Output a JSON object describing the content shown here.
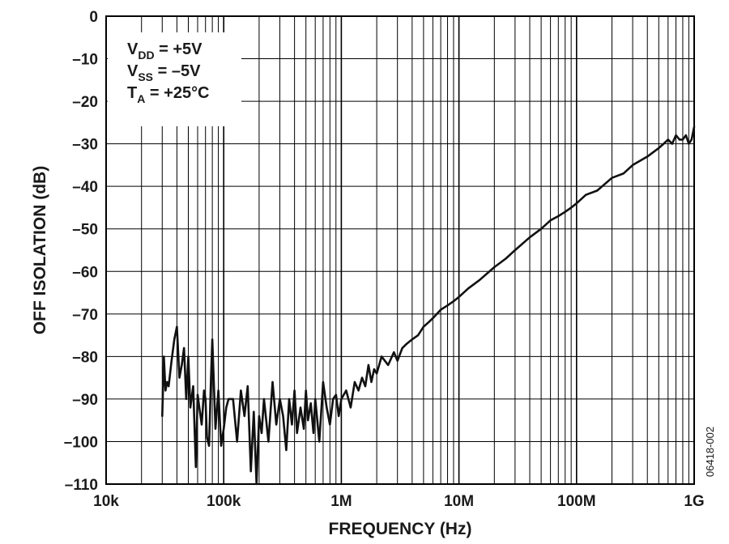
{
  "chart_data": {
    "type": "line",
    "title": "",
    "xlabel": "FREQUENCY (Hz)",
    "ylabel": "OFF ISOLATION (dB)",
    "xscale": "log",
    "xlim": [
      10000,
      1000000000
    ],
    "ylim": [
      -110,
      0
    ],
    "x_ticks": [
      10000,
      100000,
      1000000,
      10000000,
      100000000,
      1000000000
    ],
    "x_tick_labels": [
      "10k",
      "100k",
      "1M",
      "10M",
      "100M",
      "1G"
    ],
    "y_ticks": [
      0,
      -10,
      -20,
      -30,
      -40,
      -50,
      -60,
      -70,
      -80,
      -90,
      -100,
      -110
    ],
    "y_tick_labels": [
      "0",
      "–10",
      "–20",
      "–30",
      "–40",
      "–50",
      "–60",
      "–70",
      "–80",
      "–90",
      "–100",
      "–110"
    ],
    "grid": true,
    "color": "#111111",
    "figure_id": "06418-002",
    "annotation": {
      "placement": "top-left",
      "lines": [
        {
          "main": "V",
          "sub": "DD",
          "rest": " = +5V"
        },
        {
          "main": "V",
          "sub": "SS",
          "rest": " = –5V"
        },
        {
          "main": "T",
          "sub": "A",
          "rest": " = +25°C"
        }
      ]
    },
    "series": [
      {
        "x": [
          30000,
          31000,
          32000,
          33000,
          34000,
          35000,
          36000,
          38000,
          40000,
          42000,
          44000,
          46000,
          48000,
          50000,
          52000,
          55000,
          58000,
          60000,
          62000,
          65000,
          68000,
          70000,
          72000,
          75000,
          78000,
          80000,
          85000,
          90000,
          95000,
          100000,
          105000,
          110000,
          120000,
          130000,
          140000,
          150000,
          160000,
          170000,
          180000,
          190000,
          200000,
          210000,
          220000,
          240000,
          260000,
          280000,
          300000,
          320000,
          340000,
          360000,
          380000,
          400000,
          420000,
          450000,
          480000,
          500000,
          520000,
          550000,
          580000,
          600000,
          650000,
          700000,
          750000,
          800000,
          850000,
          900000,
          950000,
          1000000,
          1100000,
          1200000,
          1300000,
          1400000,
          1500000,
          1600000,
          1700000,
          1800000,
          1900000,
          2000000,
          2200000,
          2500000,
          2800000,
          3000000,
          3300000,
          3600000,
          4000000,
          4500000,
          5000000,
          5500000,
          6000000,
          7000000,
          8000000,
          9000000,
          10000000,
          12000000,
          15000000,
          20000000,
          25000000,
          30000000,
          40000000,
          50000000,
          60000000,
          70000000,
          80000000,
          90000000,
          100000000,
          120000000,
          150000000,
          200000000,
          250000000,
          300000000,
          400000000,
          500000000,
          550000000,
          600000000,
          650000000,
          700000000,
          750000000,
          800000000,
          850000000,
          900000000,
          950000000,
          1000000000
        ],
        "y": [
          -94,
          -80,
          -88,
          -86,
          -87,
          -84,
          -81,
          -76,
          -73,
          -85,
          -82,
          -78,
          -90,
          -80,
          -92,
          -87,
          -106,
          -89,
          -92,
          -96,
          -88,
          -90,
          -99,
          -101,
          -85,
          -76,
          -97,
          -88,
          -101,
          -97,
          -92,
          -90,
          -90,
          -100,
          -88,
          -94,
          -87,
          -107,
          -93,
          -110,
          -94,
          -98,
          -90,
          -100,
          -86,
          -96,
          -90,
          -94,
          -102,
          -90,
          -96,
          -88,
          -98,
          -92,
          -97,
          -88,
          -95,
          -91,
          -98,
          -90,
          -100,
          -86,
          -92,
          -96,
          -90,
          -89,
          -94,
          -90,
          -88,
          -92,
          -86,
          -88,
          -85,
          -87,
          -82,
          -86,
          -83,
          -84,
          -80,
          -82,
          -79,
          -81,
          -78,
          -77,
          -76,
          -75,
          -73,
          -72,
          -71,
          -69,
          -68,
          -67,
          -66,
          -64,
          -62,
          -59,
          -57,
          -55,
          -52,
          -50,
          -48,
          -47,
          -46,
          -45,
          -44,
          -42,
          -41,
          -38,
          -37,
          -35,
          -33,
          -31,
          -30,
          -29,
          -30,
          -28,
          -29,
          -29,
          -28,
          -30,
          -29,
          -26
        ]
      }
    ]
  }
}
